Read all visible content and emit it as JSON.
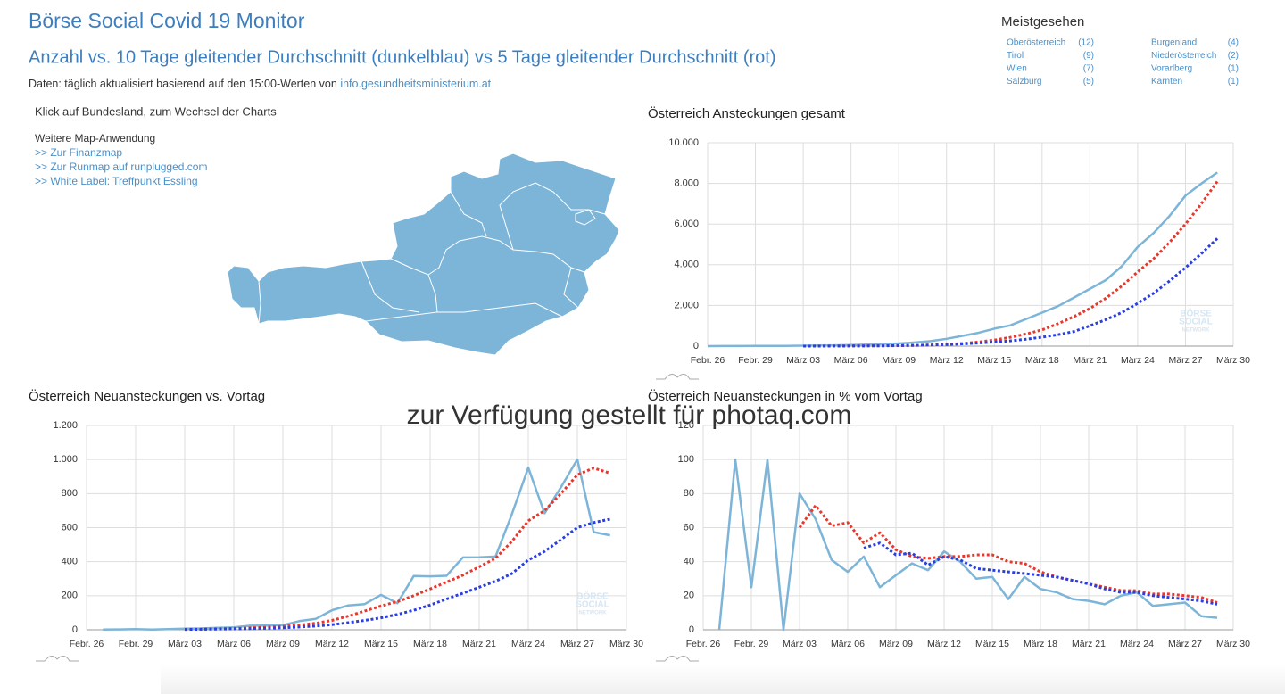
{
  "header": {
    "title": "Börse Social Covid 19 Monitor",
    "subtitle": "Anzahl vs. 10 Tage gleitender Durchschnitt (dunkelblau) vs 5 Tage gleitender Durchschnitt (rot)",
    "source_text": "Daten: täglich aktualisiert basierend auf den 15:00-Werten von",
    "source_link": "info.gesundheitsministerium.at"
  },
  "most_viewed": {
    "title": "Meistgesehen",
    "items": [
      {
        "name": "Oberösterreich",
        "count": "(12)"
      },
      {
        "name": "Tirol",
        "count": "(9)"
      },
      {
        "name": "Wien",
        "count": "(7)"
      },
      {
        "name": "Salzburg",
        "count": "(5)"
      },
      {
        "name": "Burgenland",
        "count": "(4)"
      },
      {
        "name": "Niederösterreich",
        "count": "(2)"
      },
      {
        "name": "Vorarlberg",
        "count": "(1)"
      },
      {
        "name": "Kärnten",
        "count": "(1)"
      }
    ]
  },
  "map": {
    "hint": "Klick auf Bundesland, zum Wechsel der Charts",
    "more_title": "Weitere Map-Anwendung",
    "links": [
      ">> Zur Finanzmap",
      ">> Zur Runmap auf runplugged.com",
      ">> White Label: Treffpunkt Essling"
    ]
  },
  "watermark": "zur Verfügung gestellt für photaq.com",
  "logo": [
    "BÖRSE",
    "SOCIAL",
    "NETWORK"
  ],
  "chart_data": [
    {
      "type": "line",
      "title": "Österreich Ansteckungen gesamt",
      "categories": [
        "Febr. 26",
        null,
        null,
        "Febr. 29",
        null,
        null,
        "März 03",
        null,
        null,
        "März 06",
        null,
        null,
        "März 09",
        null,
        null,
        "März 12",
        null,
        null,
        "März 15",
        null,
        null,
        "März 18",
        null,
        null,
        "März 21",
        null,
        null,
        "März 24",
        null,
        null,
        "März 27",
        null,
        null,
        "März 30"
      ],
      "series": [
        {
          "color": "#7db5d8",
          "dash": false,
          "values": [
            2,
            3,
            5,
            9,
            10,
            14,
            21,
            29,
            41,
            55,
            79,
            104,
            131,
            182,
            246,
            361,
            504,
            655,
            860,
            1016,
            1332,
            1646,
            1963,
            2388,
            2814,
            3244,
            3924,
            4876,
            5560,
            6398,
            7399,
            7995,
            8536,
            null
          ]
        },
        {
          "color": "#e8382d",
          "dash": true,
          "values": [
            null,
            null,
            null,
            null,
            null,
            null,
            2,
            3,
            4,
            6,
            9,
            14,
            22,
            35,
            55,
            85,
            130,
            200,
            300,
            430,
            600,
            800,
            1100,
            1450,
            1850,
            2350,
            2950,
            3650,
            4300,
            5100,
            6000,
            7000,
            8100,
            null
          ]
        },
        {
          "color": "#2a3fe0",
          "dash": true,
          "values": [
            null,
            null,
            null,
            null,
            null,
            null,
            1,
            2,
            4,
            7,
            11,
            17,
            26,
            38,
            55,
            80,
            110,
            150,
            200,
            260,
            340,
            440,
            560,
            720,
            1000,
            1300,
            1650,
            2100,
            2600,
            3200,
            3860,
            4550,
            5300,
            null
          ]
        }
      ],
      "ylim": [
        0,
        10000
      ],
      "yticks": [
        0,
        {
          "value": 2000,
          "label": "2.000"
        },
        {
          "value": 4000,
          "label": "4.000"
        },
        {
          "value": 6000,
          "label": "6.000"
        },
        {
          "value": 8000,
          "label": "8.000"
        },
        {
          "value": 10000,
          "label": "10.000"
        }
      ],
      "grid": true
    },
    {
      "type": "line",
      "title": "Österreich Neuansteckungen vs. Vortag",
      "categories": [
        "Febr. 26",
        null,
        null,
        "Febr. 29",
        null,
        null,
        "März 03",
        null,
        null,
        "März 06",
        null,
        null,
        "März 09",
        null,
        null,
        "März 12",
        null,
        null,
        "März 15",
        null,
        null,
        "März 18",
        null,
        null,
        "März 21",
        null,
        null,
        "März 24",
        null,
        null,
        "März 27",
        null,
        null,
        "März 30"
      ],
      "series": [
        {
          "color": "#7db5d8",
          "dash": false,
          "values": [
            null,
            1,
            2,
            4,
            1,
            4,
            7,
            8,
            12,
            14,
            24,
            25,
            27,
            51,
            64,
            115,
            143,
            151,
            205,
            156,
            316,
            314,
            317,
            425,
            426,
            430,
            680,
            952,
            684,
            838,
            1001,
            574,
            555,
            null
          ]
        },
        {
          "color": "#e8382d",
          "dash": true,
          "values": [
            null,
            null,
            null,
            null,
            null,
            null,
            3,
            4,
            6,
            8,
            11,
            15,
            20,
            28,
            38,
            55,
            80,
            110,
            140,
            165,
            200,
            240,
            280,
            320,
            370,
            420,
            520,
            640,
            700,
            800,
            910,
            950,
            920,
            null
          ]
        },
        {
          "color": "#2a3fe0",
          "dash": true,
          "values": [
            null,
            null,
            null,
            null,
            null,
            null,
            2,
            3,
            4,
            5,
            7,
            9,
            12,
            16,
            22,
            30,
            42,
            55,
            70,
            90,
            115,
            145,
            180,
            215,
            250,
            285,
            330,
            410,
            460,
            530,
            600,
            630,
            650,
            null
          ]
        }
      ],
      "ylim": [
        0,
        1200
      ],
      "yticks": [
        0,
        200,
        400,
        600,
        800,
        {
          "value": 1000,
          "label": "1.000"
        },
        {
          "value": 1200,
          "label": "1.200"
        }
      ],
      "grid": true
    },
    {
      "type": "line",
      "title": "Österreich Neuansteckungen in % vom Vortag",
      "categories": [
        "Febr. 26",
        null,
        null,
        "Febr. 29",
        null,
        null,
        "März 03",
        null,
        null,
        "März 06",
        null,
        null,
        "März 09",
        null,
        null,
        "März 12",
        null,
        null,
        "März 15",
        null,
        null,
        "März 18",
        null,
        null,
        "März 21",
        null,
        null,
        "März 24",
        null,
        null,
        "März 27",
        null,
        null,
        "März 30"
      ],
      "series": [
        {
          "color": "#7db5d8",
          "dash": false,
          "values": [
            null,
            0,
            100,
            25,
            100,
            0,
            80,
            65,
            41,
            34,
            43,
            25,
            32,
            39,
            35,
            46,
            40,
            30,
            31,
            18,
            31,
            24,
            22,
            18,
            17,
            15,
            20,
            22,
            14,
            15,
            16,
            8,
            7,
            null
          ]
        },
        {
          "color": "#e8382d",
          "dash": true,
          "values": [
            null,
            null,
            null,
            null,
            null,
            null,
            60,
            73,
            61,
            63,
            51,
            57,
            47,
            43,
            42,
            43,
            43,
            44,
            44,
            40,
            39,
            34,
            31,
            29,
            27,
            25,
            23,
            23,
            21,
            21,
            20,
            19,
            16,
            null
          ]
        },
        {
          "color": "#2a3fe0",
          "dash": true,
          "values": [
            null,
            null,
            null,
            null,
            null,
            null,
            null,
            null,
            null,
            null,
            48,
            51,
            44,
            45,
            38,
            43,
            41,
            36,
            35,
            34,
            33,
            32,
            31,
            29,
            27,
            24,
            22,
            22,
            20,
            19,
            18,
            17,
            15,
            null
          ]
        }
      ],
      "ylim": [
        0,
        120
      ],
      "yticks": [
        0,
        20,
        40,
        60,
        80,
        100,
        120
      ],
      "grid": true
    }
  ]
}
